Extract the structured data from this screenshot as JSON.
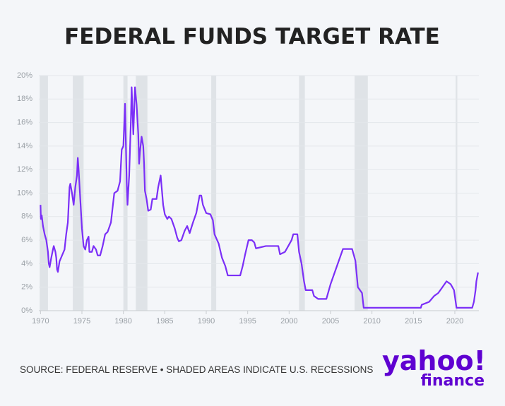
{
  "chart_data": {
    "type": "line",
    "title": "FEDERAL FUNDS TARGET RATE",
    "source": "SOURCE: FEDERAL RESERVE • SHADED AREAS INDICATE U.S. RECESSIONS",
    "logo": {
      "brand": "yahoo!",
      "product": "finance"
    },
    "color": "#7b2ff7",
    "recession_color": "#dfe3e7",
    "grid": true,
    "xlim": [
      1969.8,
      2022.9
    ],
    "xticks": [
      1970,
      1975,
      1980,
      1985,
      1990,
      1995,
      2000,
      2005,
      2010,
      2015,
      2020
    ],
    "ylim": [
      0,
      20
    ],
    "yticks": [
      {
        "value": 0,
        "label": "0%"
      },
      {
        "value": 2,
        "label": "2%"
      },
      {
        "value": 4,
        "label": "4%"
      },
      {
        "value": 6,
        "label": "6%"
      },
      {
        "value": 8,
        "label": "8%"
      },
      {
        "value": 10,
        "label": "10%"
      },
      {
        "value": 12,
        "label": "12%"
      },
      {
        "value": 14,
        "label": "14%"
      },
      {
        "value": 16,
        "label": "16%"
      },
      {
        "value": 18,
        "label": "18%"
      },
      {
        "value": 20,
        "label": "20%"
      }
    ],
    "recessions": [
      [
        1969.9,
        1970.9
      ],
      [
        1973.9,
        1975.2
      ],
      [
        1980.0,
        1980.5
      ],
      [
        1981.5,
        1982.9
      ],
      [
        1990.6,
        1991.2
      ],
      [
        2001.2,
        2001.9
      ],
      [
        2007.9,
        2009.5
      ],
      [
        2020.1,
        2020.3
      ]
    ],
    "x": [
      1970.0,
      1970.05,
      1970.15,
      1970.3,
      1970.5,
      1970.7,
      1970.9,
      1971.0,
      1971.1,
      1971.3,
      1971.5,
      1971.6,
      1971.8,
      1971.9,
      1972.0,
      1972.1,
      1972.3,
      1972.6,
      1972.9,
      1973.1,
      1973.3,
      1973.5,
      1973.6,
      1973.8,
      1974.0,
      1974.2,
      1974.4,
      1974.5,
      1974.6,
      1974.8,
      1975.0,
      1975.2,
      1975.4,
      1975.6,
      1975.8,
      1975.9,
      1976.2,
      1976.4,
      1976.7,
      1976.9,
      1977.2,
      1977.5,
      1977.8,
      1978.1,
      1978.5,
      1978.9,
      1979.3,
      1979.6,
      1979.8,
      1980.0,
      1980.2,
      1980.4,
      1980.5,
      1980.7,
      1980.9,
      1981.0,
      1981.2,
      1981.4,
      1981.6,
      1981.8,
      1981.9,
      1982.0,
      1982.2,
      1982.4,
      1982.5,
      1982.6,
      1982.8,
      1983.0,
      1983.3,
      1983.5,
      1984.0,
      1984.2,
      1984.5,
      1984.8,
      1985.0,
      1985.3,
      1985.5,
      1985.8,
      1986.2,
      1986.5,
      1986.7,
      1987.0,
      1987.4,
      1987.7,
      1988.0,
      1988.4,
      1988.8,
      1989.2,
      1989.4,
      1989.6,
      1990.0,
      1990.5,
      1990.8,
      1991.0,
      1991.5,
      1991.9,
      1992.3,
      1992.6,
      1993.0,
      1994.1,
      1994.4,
      1994.7,
      1995.1,
      1995.5,
      1995.8,
      1996.0,
      1997.2,
      1998.7,
      1998.9,
      1999.5,
      1999.9,
      2000.3,
      2000.5,
      2001.0,
      2001.2,
      2001.5,
      2001.8,
      2002.0,
      2002.8,
      2003.0,
      2003.5,
      2004.5,
      2005.0,
      2005.5,
      2006.0,
      2006.5,
      2007.6,
      2008.0,
      2008.3,
      2008.8,
      2009.0,
      2015.9,
      2016.0,
      2016.9,
      2017.5,
      2018.0,
      2018.5,
      2019.0,
      2019.5,
      2019.9,
      2020.2,
      2022.1,
      2022.3,
      2022.5,
      2022.6,
      2022.8
    ],
    "values": [
      9.0,
      7.8,
      8.1,
      7.2,
      6.5,
      6.0,
      5.0,
      4.0,
      3.7,
      4.5,
      5.2,
      5.5,
      5.0,
      4.5,
      3.5,
      3.3,
      4.2,
      4.7,
      5.2,
      6.5,
      7.5,
      10.5,
      10.8,
      10.0,
      9.0,
      10.5,
      11.5,
      13.0,
      12.0,
      9.5,
      7.0,
      5.5,
      5.2,
      6.0,
      6.3,
      5.0,
      5.0,
      5.5,
      5.2,
      4.7,
      4.7,
      5.5,
      6.5,
      6.7,
      7.5,
      10.0,
      10.2,
      11.0,
      13.7,
      14.0,
      17.6,
      11.0,
      9.0,
      11.5,
      16.0,
      19.0,
      15.0,
      19.0,
      17.5,
      15.0,
      12.5,
      13.5,
      14.8,
      14.0,
      12.5,
      10.2,
      9.5,
      8.5,
      8.6,
      9.5,
      9.5,
      10.5,
      11.5,
      9.0,
      8.2,
      7.8,
      8.0,
      7.8,
      7.0,
      6.2,
      5.9,
      6.0,
      6.8,
      7.2,
      6.6,
      7.5,
      8.3,
      9.8,
      9.8,
      9.0,
      8.3,
      8.2,
      7.7,
      6.5,
      5.7,
      4.5,
      3.8,
      3.0,
      3.0,
      3.0,
      3.8,
      4.8,
      6.0,
      6.0,
      5.8,
      5.3,
      5.5,
      5.5,
      4.8,
      5.0,
      5.5,
      6.0,
      6.5,
      6.5,
      5.0,
      4.0,
      2.5,
      1.75,
      1.75,
      1.25,
      1.0,
      1.0,
      2.25,
      3.25,
      4.25,
      5.25,
      5.25,
      4.25,
      2.0,
      1.5,
      0.25,
      0.25,
      0.5,
      0.75,
      1.25,
      1.5,
      2.0,
      2.5,
      2.25,
      1.75,
      0.25,
      0.25,
      0.75,
      1.75,
      2.5,
      3.25
    ]
  }
}
